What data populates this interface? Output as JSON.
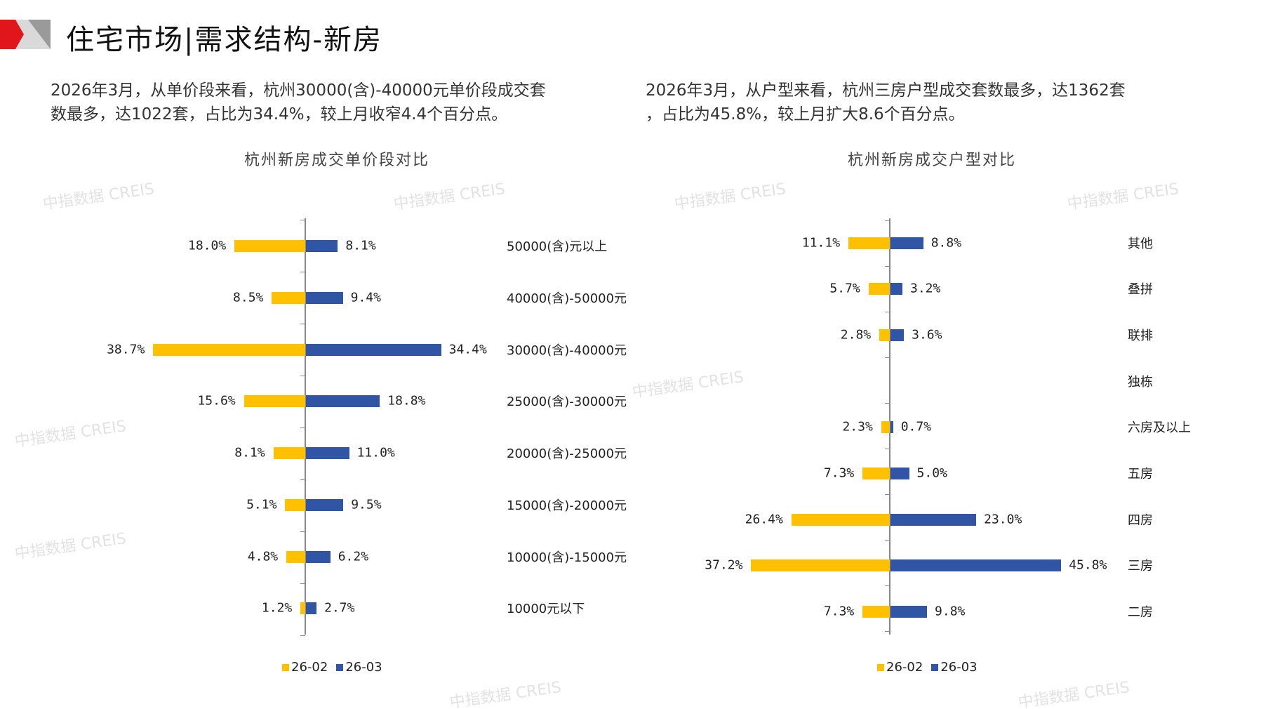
{
  "header": {
    "title": "住宅市场|需求结构-新房"
  },
  "left": {
    "text_line1": "2026年3月，从单价段来看，杭州30000(含)-40000元单价段成交套",
    "text_line2": "数最多，达1022套，占比为34.4%，较上月收窄4.4个百分点。"
  },
  "right": {
    "text_line1": "2026年3月，从户型来看，杭州三房户型成交套数最多，达1362套",
    "text_line2": "，占比为45.8%，较上月扩大8.6个百分点。"
  },
  "watermark": "中指数据 CREIS",
  "colors": {
    "s1": "#FFC000",
    "s2": "#2F55A4"
  },
  "chart_data": [
    {
      "type": "bar",
      "orientation": "horizontal-butterfly",
      "title": "杭州新房成交单价段对比",
      "categories": [
        "50000(含)元以上",
        "40000(含)-50000元",
        "30000(含)-40000元",
        "25000(含)-30000元",
        "20000(含)-25000元",
        "15000(含)-20000元",
        "10000(含)-15000元",
        "10000元以下"
      ],
      "series": [
        {
          "name": "26-02",
          "values": [
            18.0,
            8.5,
            38.7,
            15.6,
            8.1,
            5.1,
            4.8,
            1.2
          ]
        },
        {
          "name": "26-03",
          "values": [
            8.1,
            9.4,
            34.4,
            18.8,
            11.0,
            9.5,
            6.2,
            2.7
          ]
        }
      ],
      "unit": "%",
      "legend": "bottom"
    },
    {
      "type": "bar",
      "orientation": "horizontal-butterfly",
      "title": "杭州新房成交户型对比",
      "categories": [
        "其他",
        "叠拼",
        "联排",
        "独栋",
        "六房及以上",
        "五房",
        "四房",
        "三房",
        "二房"
      ],
      "series": [
        {
          "name": "26-02",
          "values": [
            11.1,
            5.7,
            2.8,
            null,
            2.3,
            7.3,
            26.4,
            37.2,
            7.3
          ]
        },
        {
          "name": "26-03",
          "values": [
            8.8,
            3.2,
            3.6,
            null,
            0.7,
            5.0,
            23.0,
            45.8,
            9.8
          ]
        }
      ],
      "unit": "%",
      "legend": "bottom"
    }
  ]
}
